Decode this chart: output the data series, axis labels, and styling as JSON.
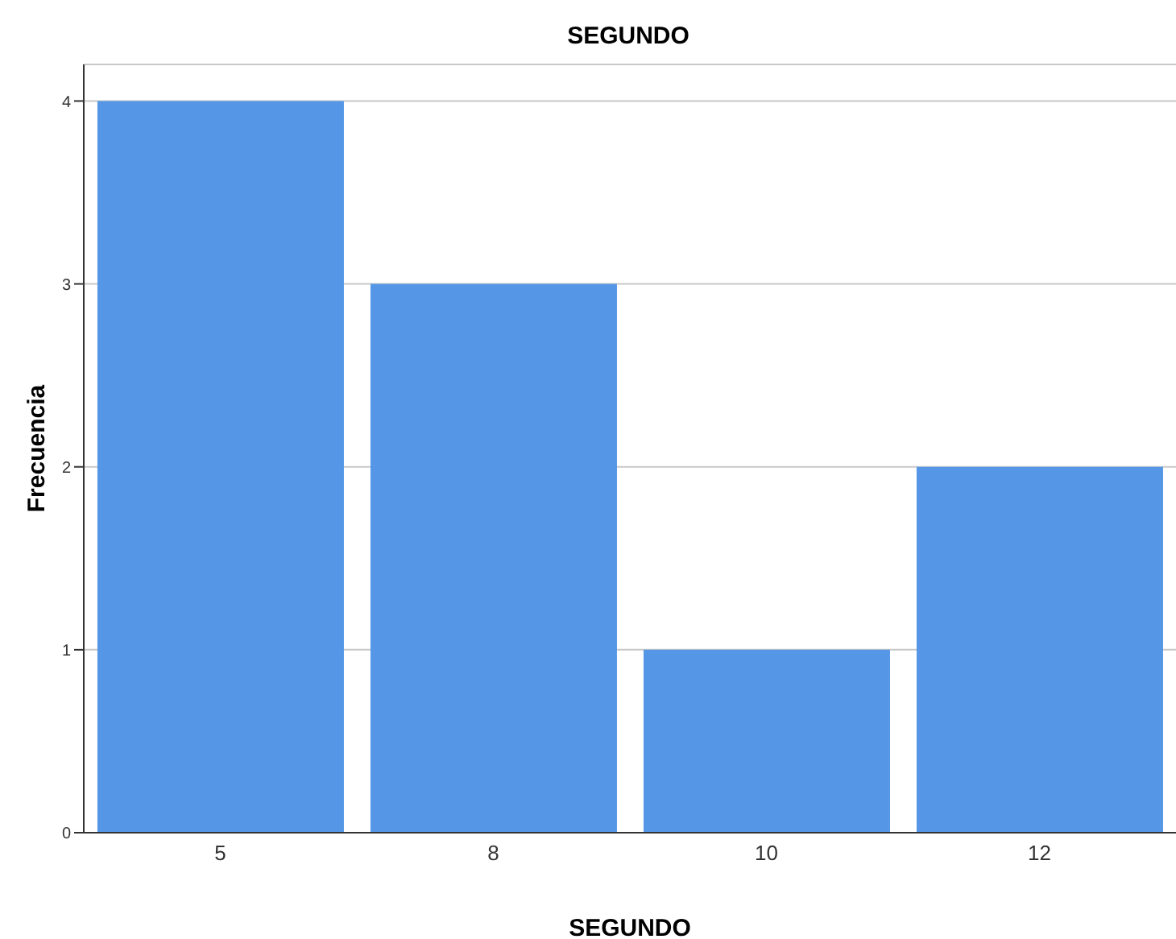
{
  "chart_data": {
    "type": "bar",
    "title": "SEGUNDO",
    "xlabel": "SEGUNDO",
    "ylabel": "Frecuencia",
    "categories": [
      "5",
      "8",
      "10",
      "12"
    ],
    "values": [
      4,
      3,
      1,
      2
    ],
    "color": "#5596e6",
    "ylim": [
      0,
      4.2
    ],
    "yticks": [
      0,
      1,
      2,
      3,
      4
    ],
    "grid": "y"
  }
}
